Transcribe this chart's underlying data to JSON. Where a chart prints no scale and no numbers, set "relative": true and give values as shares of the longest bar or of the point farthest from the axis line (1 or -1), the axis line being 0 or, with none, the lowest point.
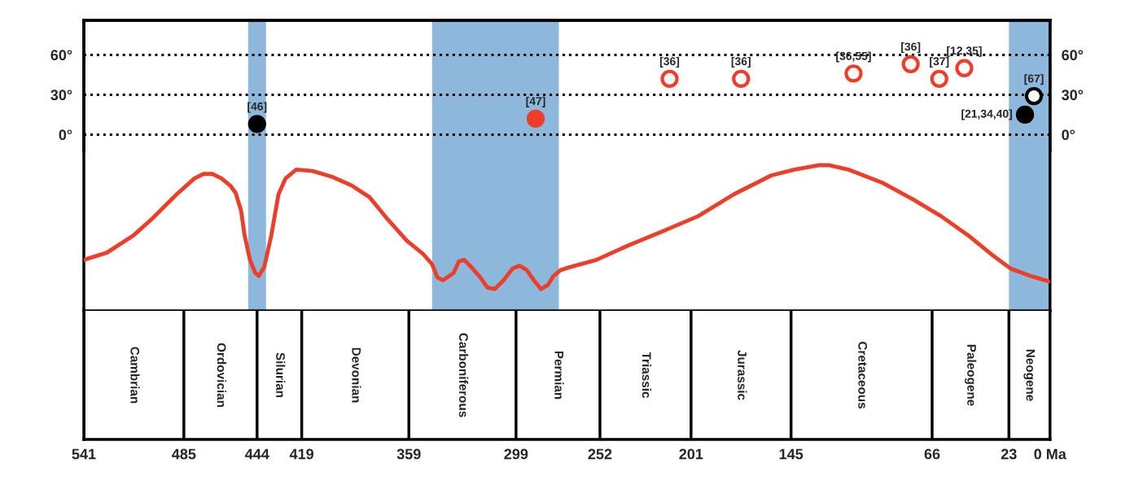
{
  "chart_data": [
    {
      "type": "scatter",
      "xlim": [
        541,
        0
      ],
      "ylim": [
        -12,
        86
      ],
      "yticks": [
        {
          "value": 0,
          "label": "0°"
        },
        {
          "value": 30,
          "label": "30°"
        },
        {
          "value": 60,
          "label": "60°"
        }
      ],
      "y2lim": [
        -12,
        86
      ],
      "y2ticks": [
        {
          "value": 0,
          "label": "0°"
        },
        {
          "value": 30,
          "label": "30°"
        },
        {
          "value": 60,
          "label": "60°"
        }
      ],
      "tick_labels": "y",
      "grid": "y",
      "marker": "circle",
      "series": [
        {
          "color": "#ec3f2a",
          "x": [
            288,
            213,
            173,
            110,
            78,
            62,
            48
          ],
          "values": [
            12,
            42,
            42,
            46,
            53,
            42,
            50
          ],
          "colors": [
            "#ec3f2a",
            "#ffffff",
            "#ffffff",
            "#ffffff",
            "#ffffff",
            "#ffffff",
            "#ffffff"
          ]
        },
        {
          "color": "#000000",
          "x": [
            444,
            14,
            9
          ],
          "values": [
            8,
            15,
            29
          ],
          "colors": [
            "#000000",
            "#000000",
            "#ffffff"
          ]
        }
      ],
      "annotations": [
        {
          "text": "[47]",
          "x": 288,
          "y": 12
        },
        {
          "text": "[36]",
          "x": 213,
          "y": 42
        },
        {
          "text": "[36]",
          "x": 173,
          "y": 42
        },
        {
          "text": "[36,55]",
          "x": 110,
          "y": 46
        },
        {
          "text": "[36]",
          "x": 78,
          "y": 53
        },
        {
          "text": "[37]",
          "x": 62,
          "y": 42
        },
        {
          "text": "[12,35]",
          "x": 48,
          "y": 50
        },
        {
          "text": "[46]",
          "x": 444,
          "y": 8
        },
        {
          "text": "[21,34,40]",
          "x": 14,
          "y": 15
        },
        {
          "text": "[67]",
          "x": 9,
          "y": 29
        }
      ],
      "bands": [
        {
          "axis": "x",
          "from": 449,
          "to": 439,
          "color": "#8db8dc"
        },
        {
          "axis": "x",
          "from": 346,
          "to": 275,
          "color": "#8db8dc"
        },
        {
          "axis": "x",
          "from": 23,
          "to": 0,
          "color": "#8db8dc"
        }
      ]
    },
    {
      "type": "line",
      "relative": true,
      "xlim": [
        541,
        0
      ],
      "xticks": [
        541,
        485,
        444,
        419,
        359,
        299,
        252,
        201,
        145,
        66,
        23,
        {
          "value": 0,
          "label": "0 Ma"
        }
      ],
      "tick_labels": "x",
      "series": [
        {
          "color": "#ec3f2a",
          "x": [
            541,
            528,
            513,
            503,
            489,
            479,
            474,
            469,
            464,
            459,
            456,
            453,
            451,
            448,
            445,
            443,
            440,
            436,
            432,
            428,
            422,
            413,
            402,
            391,
            381,
            371,
            360,
            351,
            346,
            343,
            340,
            334,
            331,
            328,
            324,
            319,
            315,
            311,
            306,
            301,
            297,
            293,
            289,
            285,
            281,
            278,
            274,
            269,
            254,
            236,
            218,
            197,
            177,
            156,
            143,
            129,
            124,
            113,
            94,
            76,
            61,
            46,
            33,
            22,
            11,
            0
          ],
          "values": [
            0.35,
            0.4,
            0.52,
            0.63,
            0.8,
            0.91,
            0.94,
            0.94,
            0.91,
            0.86,
            0.81,
            0.69,
            0.52,
            0.35,
            0.26,
            0.24,
            0.3,
            0.52,
            0.8,
            0.91,
            0.97,
            0.96,
            0.92,
            0.86,
            0.78,
            0.63,
            0.48,
            0.39,
            0.32,
            0.23,
            0.21,
            0.26,
            0.34,
            0.35,
            0.3,
            0.23,
            0.16,
            0.15,
            0.21,
            0.29,
            0.31,
            0.28,
            0.21,
            0.15,
            0.18,
            0.24,
            0.28,
            0.3,
            0.35,
            0.45,
            0.54,
            0.65,
            0.8,
            0.93,
            0.97,
            1,
            1,
            0.97,
            0.88,
            0.76,
            0.65,
            0.52,
            0.39,
            0.29,
            0.24,
            0.2
          ]
        }
      ],
      "bands": [
        {
          "axis": "x",
          "from": 449,
          "to": 439,
          "color": "#8db8dc"
        },
        {
          "axis": "x",
          "from": 346,
          "to": 275,
          "color": "#8db8dc"
        },
        {
          "axis": "x",
          "from": 23,
          "to": 0,
          "color": "#8db8dc"
        }
      ],
      "annotations": [
        "Cambrian",
        "Ordovician",
        "Silurian",
        "Devonian",
        "Carboniferous",
        "Permian",
        "Triassic",
        "Jurassic",
        "Cretaceous",
        "Paleogene",
        "Neogene"
      ]
    }
  ]
}
